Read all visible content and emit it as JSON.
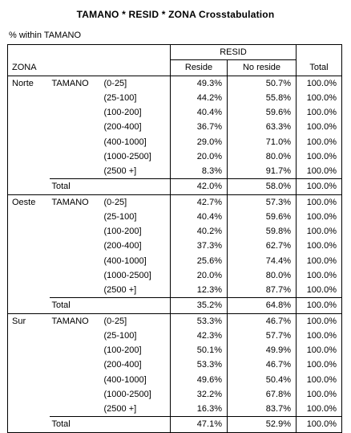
{
  "title": "TAMANO  * RESID * ZONA Crosstabulation",
  "subtitle": "% within TAMANO",
  "headers": {
    "resid": "RESID",
    "zona": "ZONA",
    "reside": "Reside",
    "no_reside": "No reside",
    "total": "Total"
  },
  "groups": [
    {
      "zona": "Norte",
      "var": "TAMANO",
      "rows": [
        {
          "label": "(0-25]",
          "reside": "49.3%",
          "no_reside": "50.7%",
          "total": "100.0%"
        },
        {
          "label": "(25-100]",
          "reside": "44.2%",
          "no_reside": "55.8%",
          "total": "100.0%"
        },
        {
          "label": "(100-200]",
          "reside": "40.4%",
          "no_reside": "59.6%",
          "total": "100.0%"
        },
        {
          "label": "(200-400]",
          "reside": "36.7%",
          "no_reside": "63.3%",
          "total": "100.0%"
        },
        {
          "label": "(400-1000]",
          "reside": "29.0%",
          "no_reside": "71.0%",
          "total": "100.0%"
        },
        {
          "label": "(1000-2500]",
          "reside": "20.0%",
          "no_reside": "80.0%",
          "total": "100.0%"
        },
        {
          "label": "(2500 +]",
          "reside": "8.3%",
          "no_reside": "91.7%",
          "total": "100.0%"
        }
      ],
      "total": {
        "label": "Total",
        "reside": "42.0%",
        "no_reside": "58.0%",
        "total": "100.0%"
      }
    },
    {
      "zona": "Oeste",
      "var": "TAMANO",
      "rows": [
        {
          "label": "(0-25]",
          "reside": "42.7%",
          "no_reside": "57.3%",
          "total": "100.0%"
        },
        {
          "label": "(25-100]",
          "reside": "40.4%",
          "no_reside": "59.6%",
          "total": "100.0%"
        },
        {
          "label": "(100-200]",
          "reside": "40.2%",
          "no_reside": "59.8%",
          "total": "100.0%"
        },
        {
          "label": "(200-400]",
          "reside": "37.3%",
          "no_reside": "62.7%",
          "total": "100.0%"
        },
        {
          "label": "(400-1000]",
          "reside": "25.6%",
          "no_reside": "74.4%",
          "total": "100.0%"
        },
        {
          "label": "(1000-2500]",
          "reside": "20.0%",
          "no_reside": "80.0%",
          "total": "100.0%"
        },
        {
          "label": "(2500 +]",
          "reside": "12.3%",
          "no_reside": "87.7%",
          "total": "100.0%"
        }
      ],
      "total": {
        "label": "Total",
        "reside": "35.2%",
        "no_reside": "64.8%",
        "total": "100.0%"
      }
    },
    {
      "zona": "Sur",
      "var": "TAMANO",
      "rows": [
        {
          "label": "(0-25]",
          "reside": "53.3%",
          "no_reside": "46.7%",
          "total": "100.0%"
        },
        {
          "label": "(25-100]",
          "reside": "42.3%",
          "no_reside": "57.7%",
          "total": "100.0%"
        },
        {
          "label": "(100-200]",
          "reside": "50.1%",
          "no_reside": "49.9%",
          "total": "100.0%"
        },
        {
          "label": "(200-400]",
          "reside": "53.3%",
          "no_reside": "46.7%",
          "total": "100.0%"
        },
        {
          "label": "(400-1000]",
          "reside": "49.6%",
          "no_reside": "50.4%",
          "total": "100.0%"
        },
        {
          "label": "(1000-2500]",
          "reside": "32.2%",
          "no_reside": "67.8%",
          "total": "100.0%"
        },
        {
          "label": "(2500 +]",
          "reside": "16.3%",
          "no_reside": "83.7%",
          "total": "100.0%"
        }
      ],
      "total": {
        "label": "Total",
        "reside": "47.1%",
        "no_reside": "52.9%",
        "total": "100.0%"
      }
    }
  ]
}
